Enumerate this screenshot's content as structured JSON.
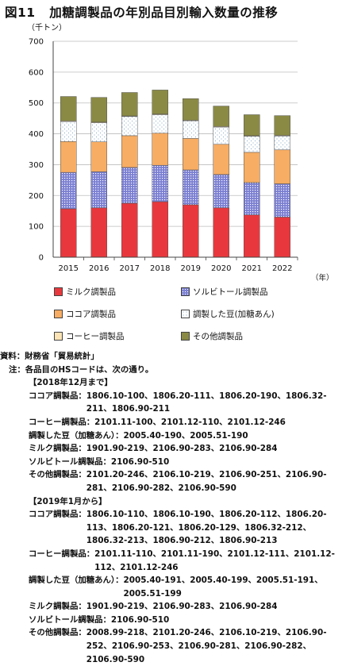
{
  "title": {
    "figure_no": "図11",
    "text": "加糖調製品の年別品目別輸入数量の推移"
  },
  "chart_data": {
    "type": "stacked-bar",
    "unit_label": "（千トン）",
    "x_unit_label": "（年）",
    "categories": [
      "2015",
      "2016",
      "2017",
      "2018",
      "2019",
      "2020",
      "2021",
      "2022"
    ],
    "ylim": [
      0,
      700
    ],
    "yticks": [
      0,
      100,
      200,
      300,
      400,
      500,
      600,
      700
    ],
    "grid": "horizontal",
    "legend_position": "bottom",
    "series": [
      {
        "name": "ミルク調製品",
        "color": "#e8383d",
        "pattern": "solid",
        "values": [
          157,
          160,
          175,
          180,
          170,
          160,
          137,
          130
        ]
      },
      {
        "name": "ソルビトール調製品",
        "color": "#7b7fd1",
        "pattern": "dots",
        "values": [
          118,
          117,
          116,
          118,
          113,
          108,
          105,
          108
        ]
      },
      {
        "name": "ココア調製品",
        "color": "#f7ad63",
        "pattern": "solid",
        "values": [
          100,
          97,
          103,
          104,
          102,
          98,
          98,
          110
        ]
      },
      {
        "name": "調製した豆(加糖あん)",
        "color": "#ffffff",
        "pattern": "sparse",
        "values": [
          65,
          62,
          62,
          60,
          57,
          56,
          52,
          45
        ]
      },
      {
        "name": "コーヒー調製品",
        "color": "#fbe3b5",
        "pattern": "solid",
        "values": [
          2,
          2,
          2,
          2,
          2,
          2,
          2,
          2
        ]
      },
      {
        "name": "その他調製品",
        "color": "#8a8a45",
        "pattern": "solid",
        "values": [
          79,
          80,
          76,
          78,
          70,
          66,
          68,
          64
        ]
      }
    ]
  },
  "source": {
    "label": "資料：",
    "text": "財務省「貿易統計」"
  },
  "note_intro": {
    "label": "注：",
    "text": "各品目のHSコードは、次の通り。"
  },
  "period1": {
    "heading": "【2018年12月まで】",
    "items": [
      {
        "label": "ココア調製品：",
        "codes": "1806.10-100、1806.20-111、1806.20-190、1806.32-211、1806.90-211"
      },
      {
        "label": "コーヒー調製品：",
        "codes": "2101.11-100、2101.12-110、2101.12-246"
      },
      {
        "label": "調製した豆（加糖あん）：",
        "codes": "2005.40-190、2005.51-190"
      },
      {
        "label": "ミルク調製品：",
        "codes": "1901.90-219、2106.90-283、2106.90-284"
      },
      {
        "label": "ソルビトール調製品：",
        "codes": "2106.90-510"
      },
      {
        "label": "その他調製品：",
        "codes": "2101.20-246、2106.10-219、2106.90-251、2106.90-281、2106.90-282、2106.90-590"
      }
    ]
  },
  "period2": {
    "heading": "【2019年1月から】",
    "items": [
      {
        "label": "ココア調製品：",
        "codes": "1806.10-110、1806.10-190、1806.20-112、1806.20-113、1806.20-121、1806.20-129、1806.32-212、1806.32-213、1806.90-212、1806.90-213"
      },
      {
        "label": "コーヒー調製品：",
        "codes": "2101.11-110、2101.11-190、2101.12-111、2101.12-112、2101.12-246"
      },
      {
        "label": "調製した豆（加糖あん）：",
        "codes": "2005.40-191、2005.40-199、2005.51-191、2005.51-199"
      },
      {
        "label": "ミルク調製品：",
        "codes": "1901.90-219、2106.90-283、2106.90-284"
      },
      {
        "label": "ソルビトール調製品：",
        "codes": "2106.90-510"
      },
      {
        "label": "その他調製品：",
        "codes": "2008.99-218、2101.20-246、2106.10-219、2106.90-252、2106.90-253、2106.90-281、2106.90-282、2106.90-590"
      }
    ]
  }
}
